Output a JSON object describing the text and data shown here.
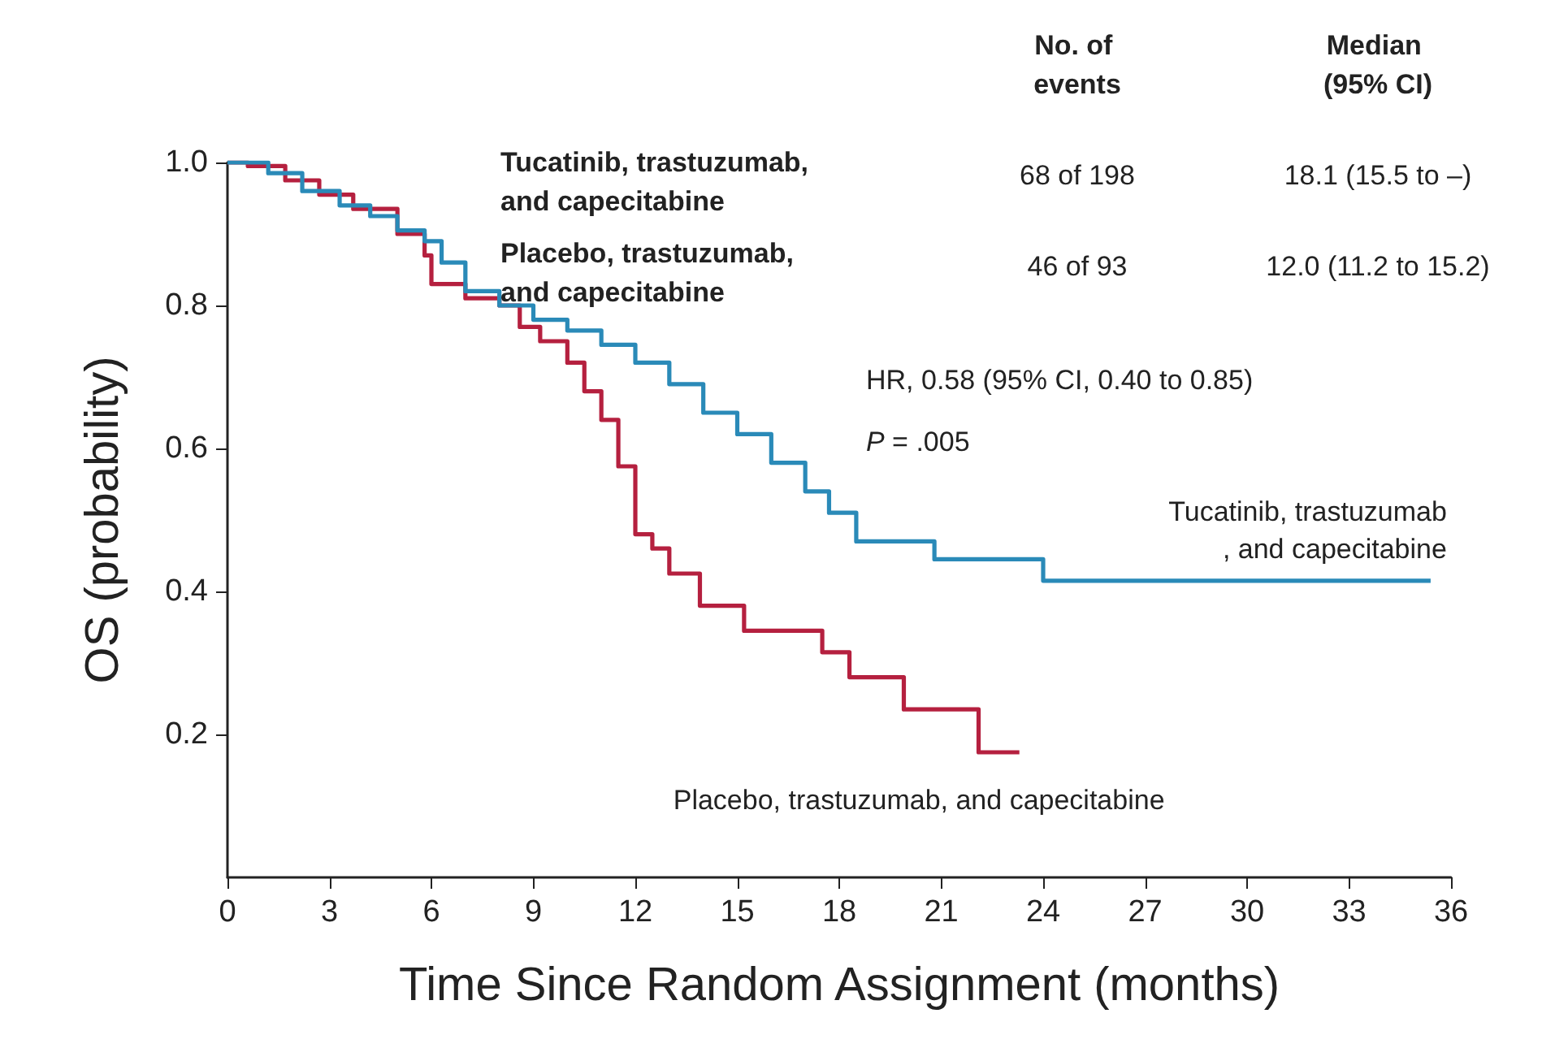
{
  "chart_data": {
    "type": "step",
    "xlabel": "Time Since Random Assignment (months)",
    "ylabel": "OS (probability)",
    "xlim": [
      0,
      36
    ],
    "xticks": [
      0,
      3,
      6,
      9,
      12,
      15,
      18,
      21,
      24,
      27,
      30,
      33,
      36
    ],
    "ylim": [
      0,
      1.0
    ],
    "yticks": [
      {
        "value": 0.2,
        "label": "0.2"
      },
      {
        "value": 0.4,
        "label": "0.4"
      },
      {
        "value": 0.6,
        "label": "0.6"
      },
      {
        "value": 0.8,
        "label": "0.8"
      },
      {
        "value": 1.0,
        "label": "1.0"
      }
    ],
    "grid": false,
    "legend": false,
    "series": [
      {
        "name": "Tucatinib, trastuzumab, and capecitabine",
        "color": "#2a8ab8",
        "x": [
          0,
          1.2,
          2.2,
          3.3,
          4.2,
          5,
          5.8,
          6.3,
          7,
          8,
          9,
          10,
          11,
          12,
          13,
          14,
          15,
          16,
          17,
          17.7,
          18.5,
          20.8,
          24.0,
          35.4
        ],
        "values": [
          1.0,
          0.985,
          0.96,
          0.94,
          0.925,
          0.905,
          0.89,
          0.86,
          0.82,
          0.8,
          0.78,
          0.765,
          0.745,
          0.72,
          0.69,
          0.65,
          0.62,
          0.58,
          0.54,
          0.51,
          0.47,
          0.445,
          0.415,
          0.415
        ]
      },
      {
        "name": "Placebo, trastuzumab, and capecitabine",
        "color": "#b5203f",
        "x": [
          0,
          0.6,
          1.7,
          2.7,
          3.7,
          5,
          5.8,
          6,
          7,
          8,
          8.6,
          9.2,
          10,
          10.5,
          11,
          11.5,
          12,
          12.5,
          13,
          13.9,
          15.2,
          17.5,
          18.3,
          19.9,
          22.1,
          23.3
        ],
        "values": [
          1.0,
          0.995,
          0.975,
          0.955,
          0.935,
          0.9,
          0.87,
          0.83,
          0.81,
          0.8,
          0.77,
          0.75,
          0.72,
          0.68,
          0.64,
          0.575,
          0.48,
          0.46,
          0.425,
          0.38,
          0.345,
          0.315,
          0.28,
          0.235,
          0.175,
          0.175
        ]
      }
    ],
    "annotations": [
      "No. of events",
      "Median (95% CI)",
      "Tucatinib, trastuzumab, and capecitabine",
      "68 of 198",
      "18.1 (15.5 to –)",
      "Placebo, trastuzumab, and capecitabine",
      "46 of 93",
      "12.0 (11.2 to 15.2)",
      "HR, 0.58 (95% CI, 0.40 to 0.85)",
      "P = .005"
    ]
  }
}
